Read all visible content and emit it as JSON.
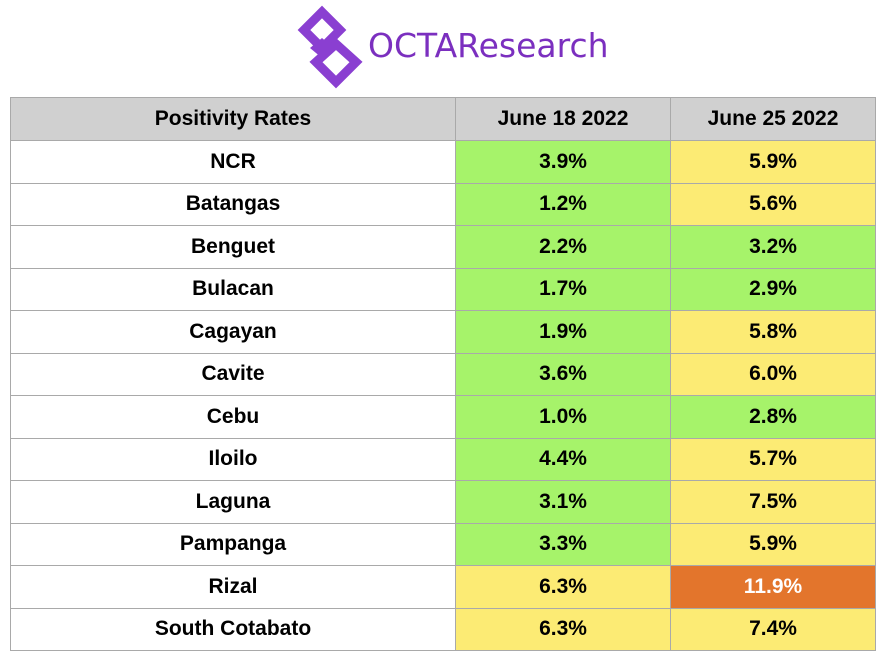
{
  "header": {
    "brand": "OCTAResearch",
    "logo_icon": "octa-logo-icon",
    "brand_color": "#7b2fbf"
  },
  "colors": {
    "green": "#a6f36a",
    "yellow": "#fceb74",
    "orange": "#e3752c",
    "header_bg": "#d0d0d0"
  },
  "chart_data": {
    "type": "table",
    "title": "",
    "columns": [
      "Positivity Rates",
      "June 18 2022",
      "June 25 2022"
    ],
    "rows": [
      {
        "region": "NCR",
        "june18": "3.9%",
        "june25": "5.9%",
        "c18": "green",
        "c25": "yellow"
      },
      {
        "region": "Batangas",
        "june18": "1.2%",
        "june25": "5.6%",
        "c18": "green",
        "c25": "yellow"
      },
      {
        "region": "Benguet",
        "june18": "2.2%",
        "june25": "3.2%",
        "c18": "green",
        "c25": "green"
      },
      {
        "region": "Bulacan",
        "june18": "1.7%",
        "june25": "2.9%",
        "c18": "green",
        "c25": "green"
      },
      {
        "region": "Cagayan",
        "june18": "1.9%",
        "june25": "5.8%",
        "c18": "green",
        "c25": "yellow"
      },
      {
        "region": "Cavite",
        "june18": "3.6%",
        "june25": "6.0%",
        "c18": "green",
        "c25": "yellow"
      },
      {
        "region": "Cebu",
        "june18": "1.0%",
        "june25": "2.8%",
        "c18": "green",
        "c25": "green"
      },
      {
        "region": "Iloilo",
        "june18": "4.4%",
        "june25": "5.7%",
        "c18": "green",
        "c25": "yellow"
      },
      {
        "region": "Laguna",
        "june18": "3.1%",
        "june25": "7.5%",
        "c18": "green",
        "c25": "yellow"
      },
      {
        "region": "Pampanga",
        "june18": "3.3%",
        "june25": "5.9%",
        "c18": "green",
        "c25": "yellow"
      },
      {
        "region": "Rizal",
        "june18": "6.3%",
        "june25": "11.9%",
        "c18": "yellow",
        "c25": "orange"
      },
      {
        "region": "South Cotabato",
        "june18": "6.3%",
        "june25": "7.4%",
        "c18": "yellow",
        "c25": "yellow"
      }
    ]
  }
}
